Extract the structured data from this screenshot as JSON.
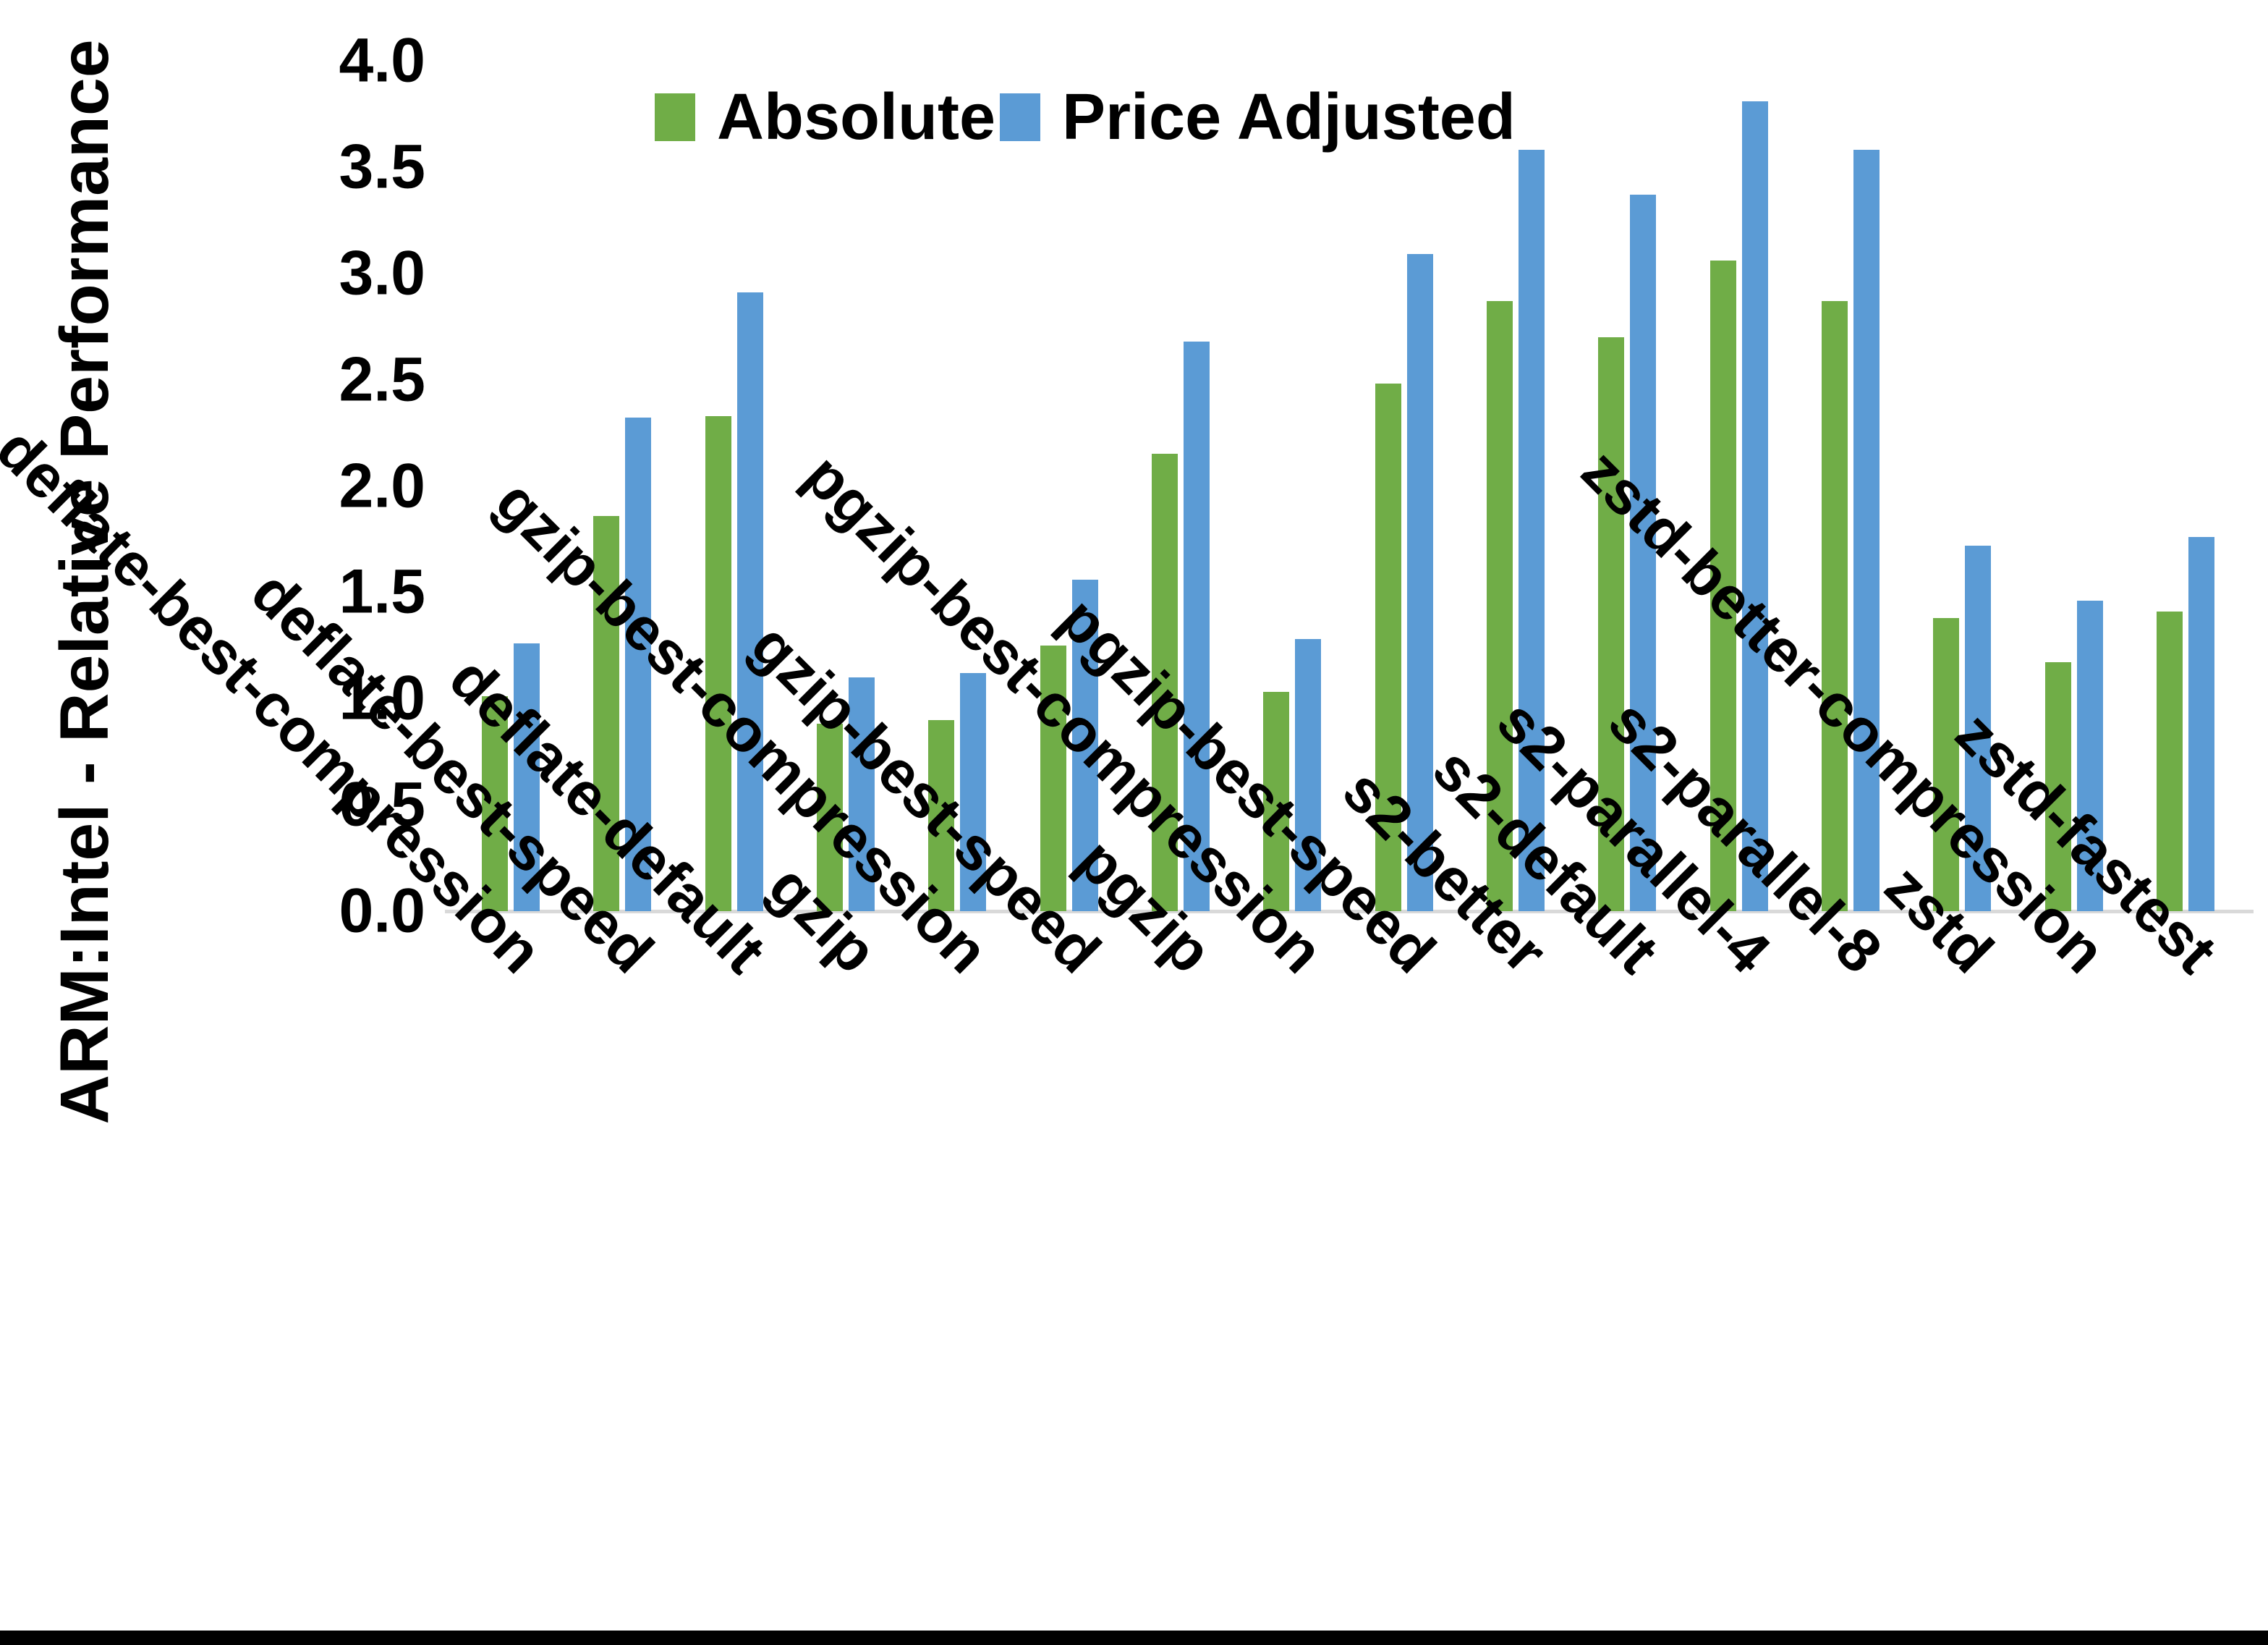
{
  "chart_data": {
    "type": "bar",
    "title": "",
    "xlabel": "",
    "ylabel": "ARM:Intel - Relative Performance",
    "ylim": [
      0.0,
      4.0
    ],
    "ytick_step": 0.5,
    "yticks": [
      "0.0",
      "0.5",
      "1.0",
      "1.5",
      "2.0",
      "2.5",
      "3.0",
      "3.5",
      "4.0"
    ],
    "grid": false,
    "legend_position": "top-center",
    "categories": [
      "deflate-best-compression",
      "deflate-best-speed",
      "deflate-default",
      "gzip",
      "gzip-best-compression",
      "gzip-best-speed",
      "pgzip",
      "pgzip-best-compression",
      "pgzip-best-speed",
      "s2-better",
      "s2-default",
      "s2-parallel-4",
      "s2-parallel-8",
      "zstd",
      "zstd-better-compression",
      "zstd-fastest"
    ],
    "series": [
      {
        "name": "Absolute",
        "color": "#70AD47",
        "values": [
          1.01,
          1.86,
          2.33,
          0.88,
          0.9,
          1.25,
          2.15,
          1.03,
          2.48,
          2.87,
          2.7,
          3.06,
          2.87,
          1.38,
          1.17,
          1.41
        ]
      },
      {
        "name": "Price Adjusted",
        "color": "#5B9BD5",
        "values": [
          1.26,
          2.32,
          2.91,
          1.1,
          1.12,
          1.56,
          2.68,
          1.28,
          3.09,
          3.58,
          3.37,
          3.81,
          3.58,
          1.72,
          1.46,
          1.76
        ]
      }
    ],
    "colors": {
      "absolute_green": "#70AD47",
      "price_adjusted_blue": "#5B9BD5",
      "axis_line_gray": "#D9D9D9",
      "text_black": "#000000"
    }
  }
}
